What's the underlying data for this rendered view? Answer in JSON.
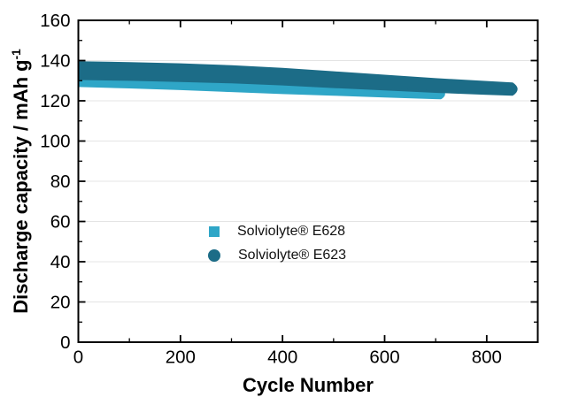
{
  "figure": {
    "background": "#ffffff",
    "axis_color": "#000000",
    "grid_color": "#e4e4e4",
    "tick_label_color": "#000000"
  },
  "chart_data": {
    "type": "scatter",
    "title": "",
    "xlabel": "Cycle Number",
    "ylabel": "Discharge capacity / mAh g⁻¹",
    "ylabel_main": "Discharge capacity / mAh g",
    "ylabel_superscript": "-1",
    "xlim": [
      0,
      900
    ],
    "ylim": [
      0,
      160
    ],
    "x_major_ticks": [
      0,
      200,
      400,
      600,
      800
    ],
    "x_minor_ticks": [
      100,
      300,
      500,
      700,
      900
    ],
    "y_major_ticks": [
      0,
      20,
      40,
      60,
      80,
      100,
      120,
      140,
      160
    ],
    "y_minor_ticks": [
      10,
      30,
      50,
      70,
      90,
      110,
      130,
      150
    ],
    "grid": "horizontal-major-only",
    "legend_position": "inside-center",
    "series": [
      {
        "name": "Solviolyte® E628",
        "marker": "square",
        "color": "#2fa6c7",
        "x": [
          0,
          100,
          200,
          300,
          400,
          500,
          600,
          700,
          710
        ],
        "y": [
          130.8,
          129.9,
          129.0,
          127.8,
          126.5,
          125.5,
          124.5,
          123.6,
          123.4
        ],
        "band_top": [
          134.0,
          133.0,
          132.0,
          130.5,
          129.0,
          127.8,
          126.6,
          125.6,
          125.4
        ],
        "band_bottom": [
          127.5,
          126.8,
          126.0,
          125.0,
          124.0,
          123.2,
          122.3,
          121.5,
          121.4
        ]
      },
      {
        "name": "Solviolyte® E623",
        "marker": "circle",
        "color": "#1c6c87",
        "x": [
          0,
          100,
          200,
          300,
          400,
          500,
          600,
          700,
          800,
          850
        ],
        "y": [
          135.0,
          134.6,
          134.0,
          133.2,
          132.0,
          130.5,
          129.1,
          127.6,
          126.4,
          125.9
        ],
        "band_top": [
          139.0,
          138.6,
          138.0,
          137.0,
          135.7,
          134.0,
          132.3,
          130.6,
          129.2,
          128.5
        ],
        "band_bottom": [
          131.0,
          130.6,
          130.0,
          129.3,
          128.3,
          127.0,
          125.8,
          124.6,
          123.6,
          123.2
        ]
      }
    ]
  }
}
